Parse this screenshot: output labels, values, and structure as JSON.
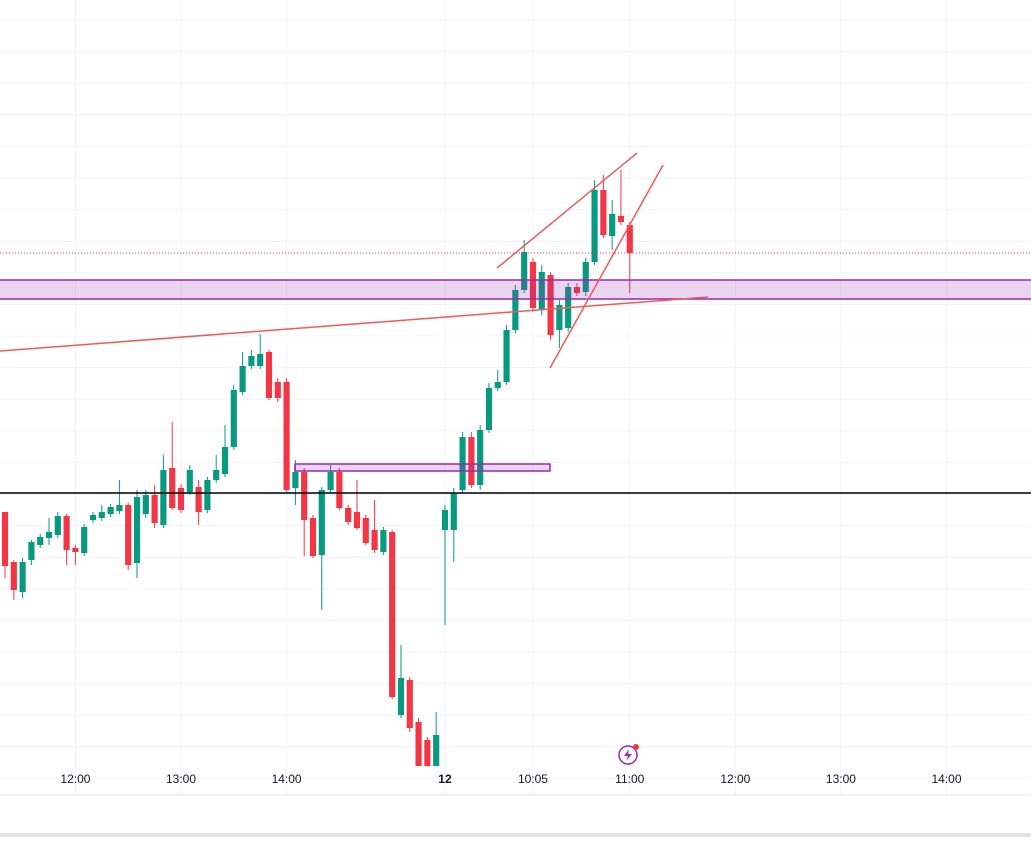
{
  "chart_data": {
    "type": "candlestick",
    "up_color": "#089981",
    "down_color": "#f23645",
    "grid": true,
    "xlim": [
      -0.57,
      116.6
    ],
    "ylim": [
      0,
      795
    ],
    "xticks": [
      {
        "value": 8,
        "label": "12:00"
      },
      {
        "value": 20,
        "label": "13:00"
      },
      {
        "value": 32,
        "label": "14:00"
      },
      {
        "value": 50,
        "label": "12"
      },
      {
        "value": 60,
        "label": "10:05"
      },
      {
        "value": 71,
        "label": "11:00"
      },
      {
        "value": 83,
        "label": "12:00"
      },
      {
        "value": 95,
        "label": "13:00"
      },
      {
        "value": 107,
        "label": "14:00"
      }
    ],
    "x": [
      0,
      1,
      2,
      3,
      4,
      5,
      6,
      7,
      8,
      9,
      10,
      11,
      12,
      13,
      14,
      15,
      16,
      17,
      18,
      19,
      20,
      21,
      22,
      23,
      24,
      25,
      26,
      27,
      28,
      29,
      30,
      31,
      32,
      33,
      34,
      35,
      36,
      37,
      38,
      39,
      40,
      41,
      42,
      43,
      44,
      45,
      46,
      47,
      48,
      49,
      50,
      51,
      52,
      53,
      54,
      55,
      56,
      57,
      58,
      59,
      60,
      61,
      62,
      63,
      64,
      65,
      66,
      67,
      68,
      69,
      70,
      71
    ],
    "open": [
      283,
      233,
      203,
      235,
      250,
      257,
      260,
      279,
      247,
      242,
      275,
      277,
      281,
      284,
      290,
      232,
      281,
      300,
      270,
      327,
      307,
      303,
      308,
      285,
      315,
      321,
      348,
      403,
      429,
      429,
      443,
      413,
      413,
      307,
      323,
      277,
      240,
      305,
      323,
      287,
      283,
      277,
      265,
      243,
      263,
      80,
      115,
      73,
      55,
      29,
      265,
      265,
      305,
      358,
      310,
      365,
      407,
      413,
      465,
      505,
      533,
      485,
      520,
      465,
      467,
      508,
      503,
      533,
      605,
      559,
      579,
      570
    ],
    "high": [
      283,
      235,
      237,
      255,
      261,
      277,
      283,
      281,
      250,
      271,
      283,
      290,
      291,
      315,
      292,
      305,
      305,
      310,
      340,
      373,
      311,
      330,
      315,
      318,
      340,
      370,
      410,
      443,
      445,
      461,
      445,
      417,
      417,
      335,
      327,
      280,
      308,
      330,
      327,
      290,
      315,
      280,
      295,
      268,
      265,
      150,
      118,
      77,
      58,
      83,
      290,
      307,
      363,
      363,
      370,
      412,
      425,
      470,
      510,
      555,
      537,
      530,
      523,
      495,
      512,
      512,
      537,
      615,
      620,
      595,
      625,
      573
    ],
    "low": [
      217,
      195,
      197,
      230,
      247,
      250,
      257,
      230,
      230,
      239,
      272,
      274,
      278,
      281,
      225,
      217,
      277,
      267,
      267,
      285,
      282,
      300,
      270,
      282,
      312,
      318,
      345,
      400,
      426,
      426,
      395,
      393,
      303,
      290,
      239,
      237,
      185,
      302,
      285,
      270,
      265,
      250,
      242,
      240,
      96,
      77,
      63,
      29,
      29,
      29,
      170,
      233,
      302,
      307,
      305,
      362,
      404,
      410,
      462,
      502,
      483,
      480,
      455,
      447,
      463,
      499,
      499,
      530,
      557,
      545,
      570,
      502
    ],
    "close": [
      229,
      205,
      233,
      253,
      258,
      263,
      279,
      245,
      243,
      268,
      280,
      283,
      288,
      290,
      230,
      298,
      300,
      272,
      325,
      287,
      285,
      325,
      283,
      315,
      325,
      348,
      405,
      429,
      439,
      441,
      397,
      397,
      305,
      323,
      275,
      239,
      305,
      323,
      287,
      273,
      267,
      252,
      245,
      265,
      98,
      117,
      67,
      29,
      29,
      60,
      285,
      302,
      358,
      310,
      365,
      407,
      413,
      465,
      505,
      543,
      487,
      523,
      460,
      490,
      508,
      502,
      533,
      605,
      560,
      581,
      573,
      542
    ]
  }
}
